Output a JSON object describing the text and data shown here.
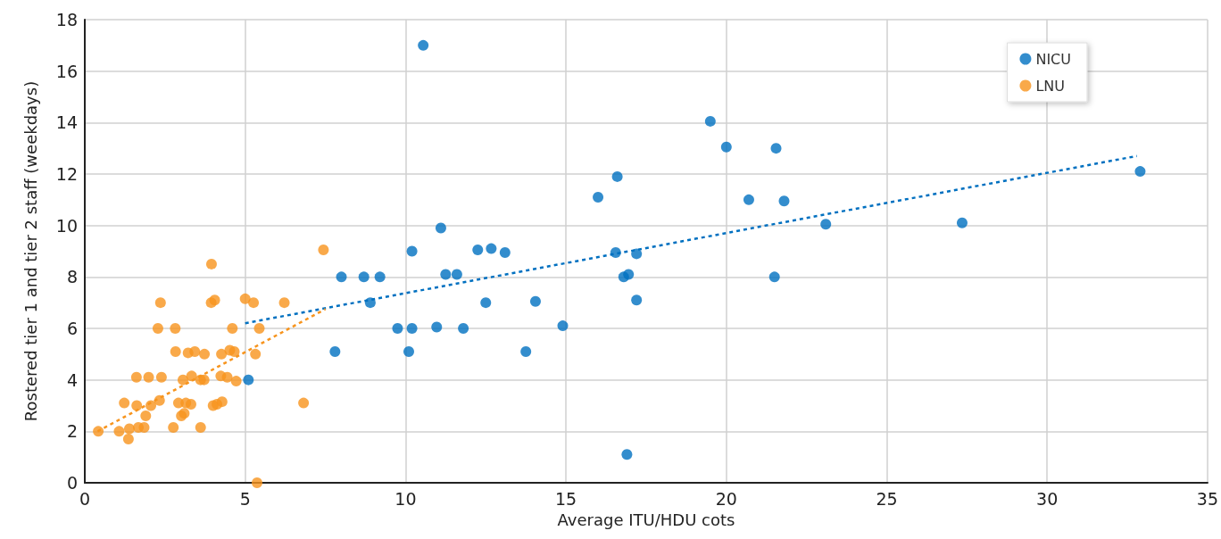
{
  "chart_data": {
    "type": "scatter",
    "xlabel": "Average ITU/HDU cots",
    "ylabel": "Rostered tier 1 and tier 2 staff (weekdays)",
    "xlim": [
      0,
      35
    ],
    "xticks": [
      0,
      5,
      10,
      15,
      20,
      25,
      30,
      35
    ],
    "ylim": [
      0,
      18
    ],
    "yticks": [
      0,
      2,
      4,
      6,
      8,
      10,
      12,
      14,
      16,
      18
    ],
    "grid": true,
    "legend": "top right",
    "marker": "circle",
    "series": [
      {
        "name": "NICU",
        "color": "#0070c0",
        "x": [
          5.1,
          7.8,
          8.0,
          8.7,
          8.9,
          9.2,
          9.75,
          10.1,
          10.2,
          10.2,
          10.55,
          10.97,
          11.1,
          11.25,
          11.6,
          11.8,
          12.25,
          12.67,
          12.5,
          13.1,
          13.75,
          14.05,
          14.9,
          16.0,
          16.6,
          16.55,
          16.8,
          16.95,
          16.9,
          17.2,
          17.2,
          19.5,
          20.0,
          20.7,
          21.5,
          21.55,
          21.8,
          23.1,
          27.35,
          32.9
        ],
        "values": [
          4.0,
          5.1,
          8.0,
          8.0,
          7.0,
          8.0,
          6.0,
          5.1,
          6.0,
          9.0,
          17.0,
          6.05,
          9.9,
          8.1,
          8.1,
          6.0,
          9.05,
          9.1,
          7.0,
          8.95,
          5.1,
          7.05,
          6.1,
          11.1,
          11.9,
          8.95,
          8.0,
          8.1,
          1.1,
          8.9,
          7.1,
          14.05,
          13.05,
          11.0,
          8.0,
          13.0,
          10.95,
          10.05,
          10.1,
          12.1
        ]
      },
      {
        "name": "LNU",
        "color": "#f7941d",
        "x": [
          0.42,
          1.07,
          1.36,
          1.39,
          1.23,
          1.62,
          1.61,
          1.99,
          2.39,
          1.67,
          1.85,
          1.9,
          2.06,
          2.33,
          2.36,
          2.28,
          2.82,
          2.83,
          2.76,
          2.92,
          3.06,
          3.01,
          3.1,
          3.15,
          3.31,
          3.22,
          3.43,
          3.33,
          3.61,
          3.72,
          3.73,
          3.61,
          3.95,
          3.94,
          4.05,
          4.0,
          4.12,
          4.28,
          4.26,
          4.24,
          4.44,
          4.52,
          4.66,
          4.72,
          4.6,
          5.0,
          5.26,
          5.44,
          5.32,
          6.22,
          5.37,
          6.82,
          7.44
        ],
        "values": [
          2.0,
          2.0,
          1.7,
          2.1,
          3.1,
          3.0,
          4.1,
          4.1,
          4.1,
          2.15,
          2.15,
          2.6,
          3.0,
          3.2,
          7.0,
          6.0,
          6.0,
          5.1,
          2.15,
          3.1,
          4.0,
          2.6,
          2.7,
          3.1,
          3.05,
          5.05,
          5.1,
          4.15,
          4.0,
          4.0,
          5.0,
          2.15,
          8.5,
          7.0,
          7.1,
          3.0,
          3.05,
          3.15,
          5.0,
          4.15,
          4.1,
          5.15,
          5.1,
          3.95,
          6.0,
          7.15,
          7.0,
          6.0,
          5.0,
          7.0,
          0,
          3.1,
          9.05
        ]
      },
      {
        "type": "line",
        "color": "#0070c0",
        "line_style": "dotted",
        "marker": "none",
        "x": [
          5.0,
          32.8
        ],
        "values": [
          6.2,
          12.7
        ]
      },
      {
        "type": "line",
        "color": "#f7941d",
        "line_style": "dotted",
        "marker": "none",
        "x": [
          0.4,
          7.5
        ],
        "values": [
          2.0,
          6.75
        ]
      }
    ]
  }
}
